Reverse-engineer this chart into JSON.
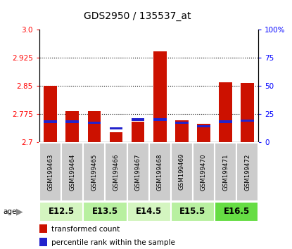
{
  "title": "GDS2950 / 135537_at",
  "samples": [
    "GSM199463",
    "GSM199464",
    "GSM199465",
    "GSM199466",
    "GSM199467",
    "GSM199468",
    "GSM199469",
    "GSM199470",
    "GSM199471",
    "GSM199472"
  ],
  "red_values": [
    2.851,
    2.783,
    2.782,
    2.726,
    2.754,
    2.943,
    2.758,
    2.748,
    2.86,
    2.858
  ],
  "blue_values": [
    18,
    18,
    17,
    12,
    20,
    20,
    17,
    14,
    18,
    19
  ],
  "y_min": 2.7,
  "y_max": 3.0,
  "y_ticks": [
    2.7,
    2.775,
    2.85,
    2.925,
    3.0
  ],
  "y2_ticks": [
    0,
    25,
    50,
    75,
    100
  ],
  "y2_labels": [
    "0",
    "25",
    "50",
    "75",
    "100%"
  ],
  "age_groups": [
    {
      "label": "E12.5",
      "start": 0,
      "end": 2,
      "color": "#d4f5c0"
    },
    {
      "label": "E13.5",
      "start": 2,
      "end": 4,
      "color": "#b8f0a0"
    },
    {
      "label": "E14.5",
      "start": 4,
      "end": 6,
      "color": "#d4f5c0"
    },
    {
      "label": "E15.5",
      "start": 6,
      "end": 8,
      "color": "#b8f0a0"
    },
    {
      "label": "E16.5",
      "start": 8,
      "end": 10,
      "color": "#66dd44"
    }
  ],
  "bar_width": 0.6,
  "red_color": "#cc1100",
  "blue_color": "#2222cc",
  "sample_bg": "#cccccc",
  "sample_edge": "#ffffff"
}
